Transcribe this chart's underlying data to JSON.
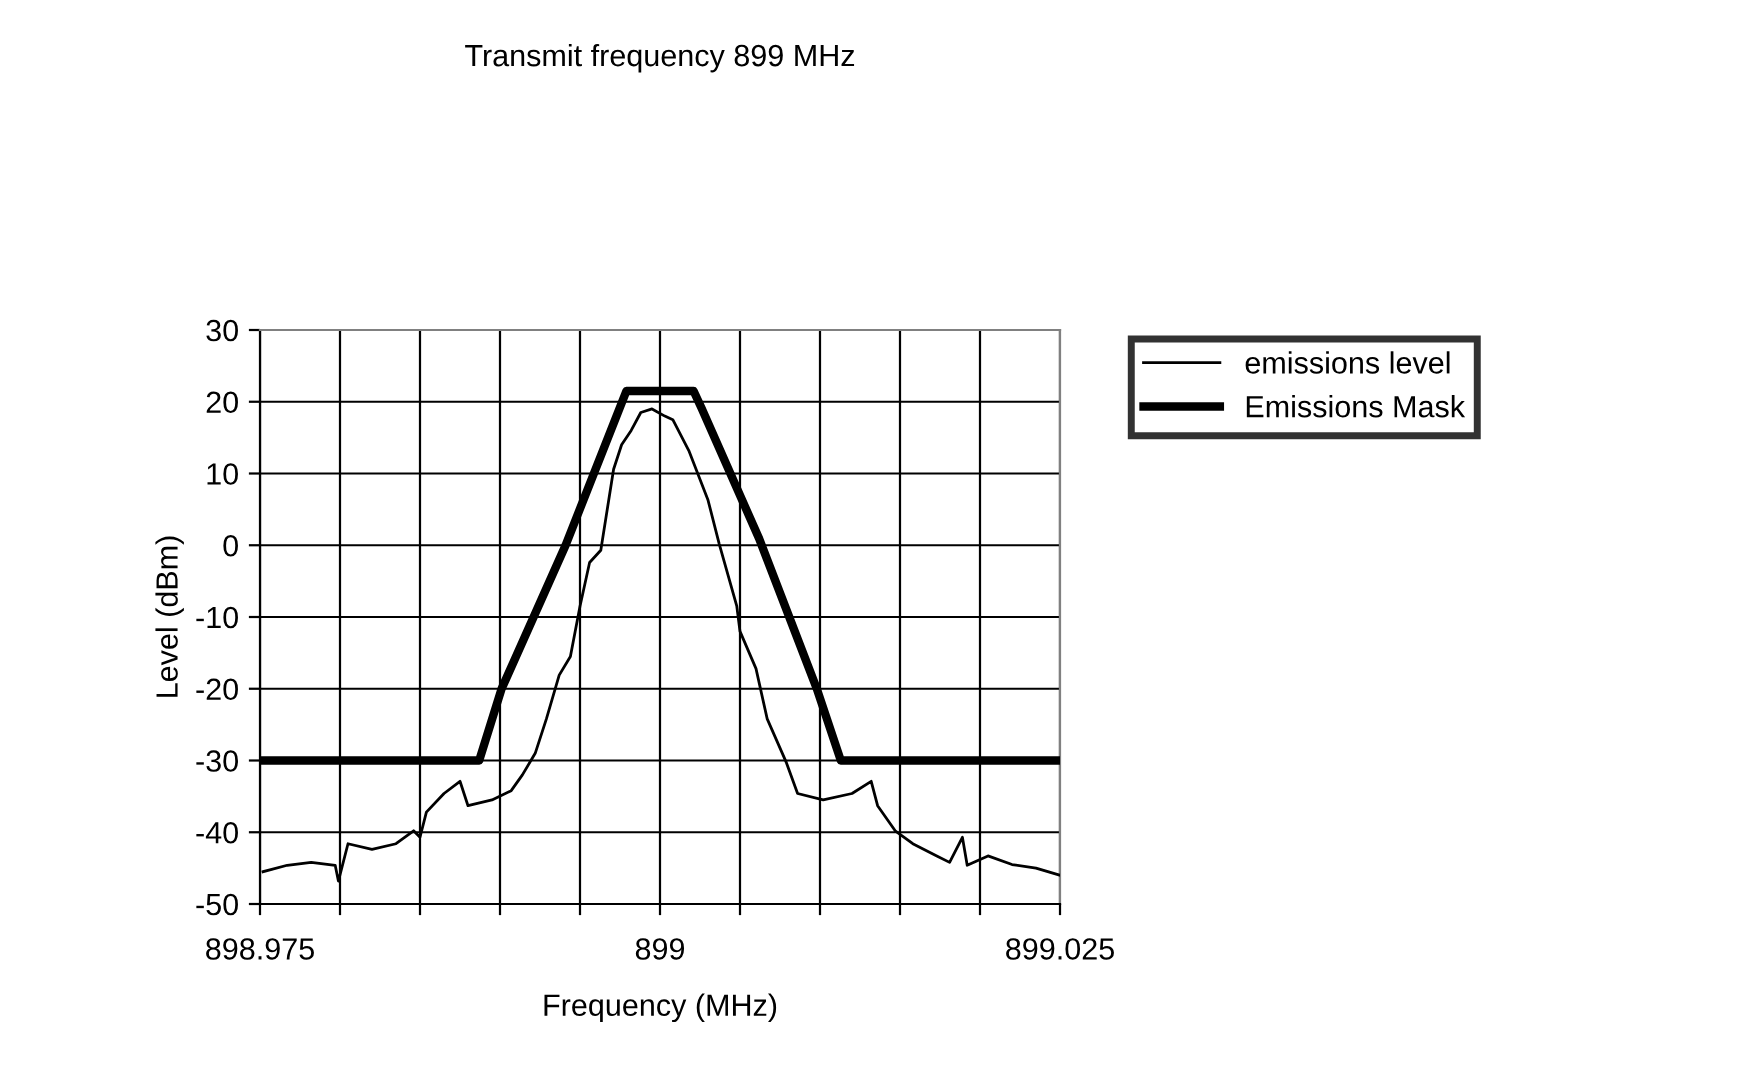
{
  "chart_data": {
    "type": "line",
    "title": "Transmit frequency 899 MHz",
    "xlabel": "Frequency (MHz)",
    "ylabel": "Level (dBm)",
    "xlim": [
      898.975,
      899.025
    ],
    "ylim": [
      -50,
      30
    ],
    "xticks": [
      898.975,
      {
        "value": 898.98,
        "label": null
      },
      {
        "value": 898.985,
        "label": null
      },
      {
        "value": 898.99,
        "label": null
      },
      {
        "value": 898.995,
        "label": null
      },
      899,
      {
        "value": 899.005,
        "label": null
      },
      {
        "value": 899.01,
        "label": null
      },
      {
        "value": 899.015,
        "label": null
      },
      {
        "value": 899.02,
        "label": null
      },
      899.025
    ],
    "yticks": [
      -50,
      -40,
      -30,
      -20,
      -10,
      0,
      10,
      20,
      30
    ],
    "grid": true,
    "legend": "right",
    "marker": "none",
    "series": [
      {
        "name": "emissions level",
        "color": "#000000",
        "x": [
          898.97519,
          898.9767,
          898.9782,
          898.9797,
          898.9799,
          898.9805,
          898.982,
          898.9835,
          898.9846,
          898.985,
          898.9854,
          898.9865,
          898.9875,
          898.988,
          898.9895,
          898.9907,
          898.9914,
          898.9922,
          898.9929,
          898.9937,
          898.9944,
          898.995,
          898.9956,
          898.9963,
          898.9971,
          898.9976,
          898.9982,
          898.9988,
          898.9995,
          899.0003,
          899.0008,
          899.0018,
          899.003,
          899.0037,
          899.0048,
          899.005,
          899.006,
          899.0067,
          899.0079,
          899.0086,
          899.0102,
          899.012,
          899.0132,
          899.0136,
          899.0147,
          899.0158,
          899.0173,
          899.0181,
          899.0189,
          899.0192,
          899.0205,
          899.022,
          899.0235,
          899.025
        ],
        "values": [
          -45.5,
          -44.6,
          -44.2,
          -44.6,
          -46.8,
          -41.6,
          -42.4,
          -41.6,
          -39.8,
          -40.7,
          -37.2,
          -34.6,
          -32.9,
          -36.3,
          -35.5,
          -34.2,
          -32,
          -29,
          -24.2,
          -18.1,
          -15.5,
          -8.5,
          -2.4,
          -0.7,
          10.6,
          14,
          16,
          18.5,
          19,
          18,
          17.5,
          13.2,
          6.3,
          0.2,
          -8.5,
          -12,
          -17.2,
          -24.2,
          -30.3,
          -34.6,
          -35.5,
          -34.6,
          -32.9,
          -36.3,
          -39.8,
          -41.6,
          -43.3,
          -44.2,
          -40.7,
          -44.6,
          -43.3,
          -44.5,
          -45,
          -46
        ]
      },
      {
        "name": "Emissions Mask",
        "color": "#000000",
        "x": [
          898.975,
          898.9887,
          898.9901,
          898.9941,
          898.9979,
          899.0021,
          899.0026,
          899.0062,
          899.0098,
          899.0113,
          899.025
        ],
        "values": [
          -30,
          -30,
          -20,
          0,
          21.5,
          21.5,
          19.1,
          0.9,
          -20,
          -30,
          -30
        ]
      }
    ]
  }
}
